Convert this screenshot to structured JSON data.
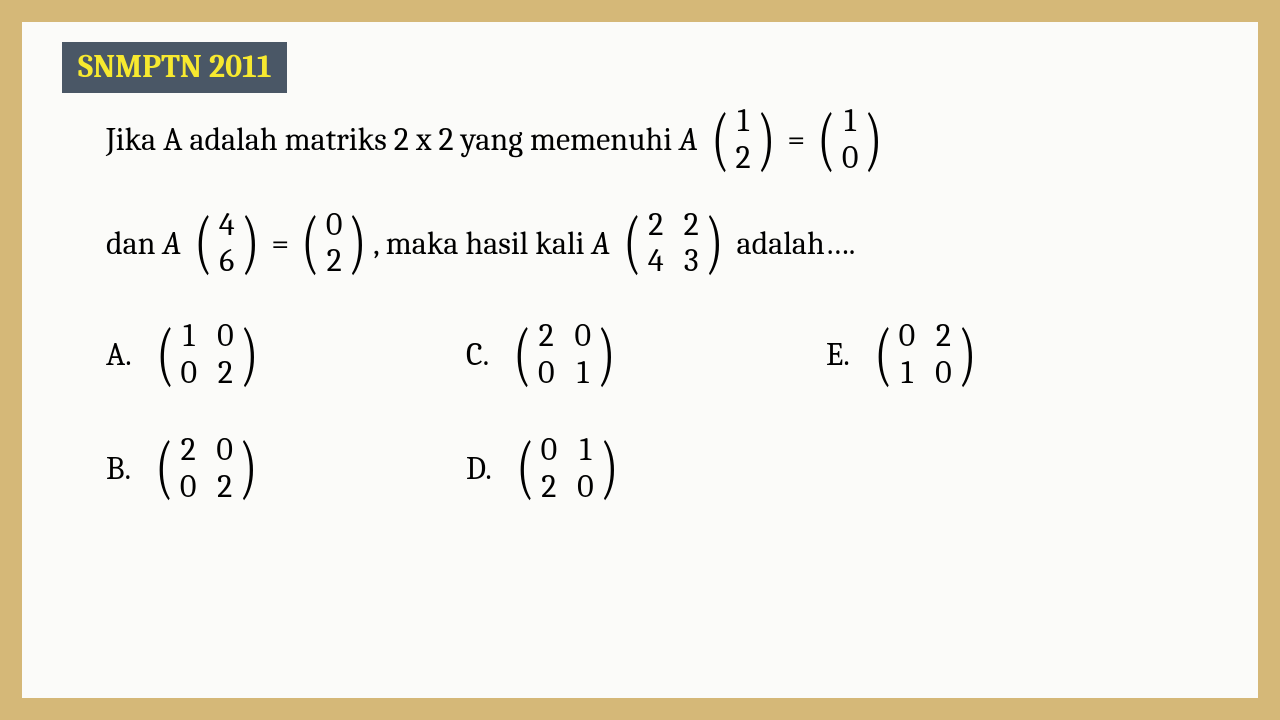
{
  "badge": "SNMPTN 2011",
  "q": {
    "prefix1": "Jika A adalah matriks 2 x 2 yang memenuhi ",
    "A": "A",
    "vec1": [
      "1",
      "2"
    ],
    "eq": "=",
    "vec2": [
      "1",
      "0"
    ],
    "dan": "dan ",
    "vec3": [
      "4",
      "6"
    ],
    "vec4": [
      "0",
      "2"
    ],
    "mid": ", maka hasil kali ",
    "mat5": [
      [
        "2",
        "2"
      ],
      [
        "4",
        "3"
      ]
    ],
    "suffix": " adalah…."
  },
  "options": {
    "A": {
      "letter": "A.",
      "m": [
        [
          "1",
          "0"
        ],
        [
          "0",
          "2"
        ]
      ]
    },
    "B": {
      "letter": "B.",
      "m": [
        [
          "2",
          "0"
        ],
        [
          "0",
          "2"
        ]
      ]
    },
    "C": {
      "letter": "C.",
      "m": [
        [
          "2",
          "0"
        ],
        [
          "0",
          "1"
        ]
      ]
    },
    "D": {
      "letter": "D.",
      "m": [
        [
          "0",
          "1"
        ],
        [
          "2",
          "0"
        ]
      ]
    },
    "E": {
      "letter": "E.",
      "m": [
        [
          "0",
          "2"
        ],
        [
          "1",
          "0"
        ]
      ]
    }
  },
  "colors": {
    "outer_bg": "#d5b878",
    "page_bg": "#fbfbf9",
    "badge_bg": "#4a5766",
    "badge_fg": "#f7e92f",
    "text": "#000000"
  },
  "fontsizes": {
    "body": 32,
    "badge": 32,
    "paren": 70
  }
}
